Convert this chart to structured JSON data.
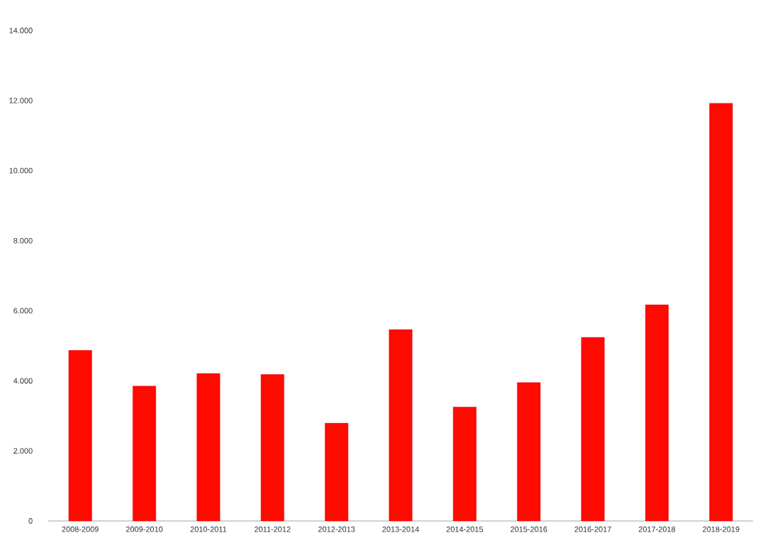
{
  "chart_data": {
    "type": "bar",
    "categories": [
      "2008-2009",
      "2009-2010",
      "2010-2011",
      "2011-2012",
      "2012-2013",
      "2013-2014",
      "2014-2015",
      "2015-2016",
      "2016-2017",
      "2017-2018",
      "2018-2019"
    ],
    "values": [
      4870,
      3850,
      4210,
      4180,
      2790,
      5460,
      3250,
      3950,
      5240,
      6170,
      11920
    ],
    "color": "#ff0a00",
    "ylim": [
      0,
      14000
    ],
    "yticks": [
      0,
      {
        "value": 2000,
        "label": "2.000"
      },
      {
        "value": 4000,
        "label": "4.000"
      },
      {
        "value": 6000,
        "label": "6.000"
      },
      {
        "value": 8000,
        "label": "8.000"
      },
      {
        "value": 10000,
        "label": "10.000"
      },
      {
        "value": 12000,
        "label": "12.000"
      },
      {
        "value": 14000,
        "label": "14.000"
      }
    ],
    "grid": false
  }
}
